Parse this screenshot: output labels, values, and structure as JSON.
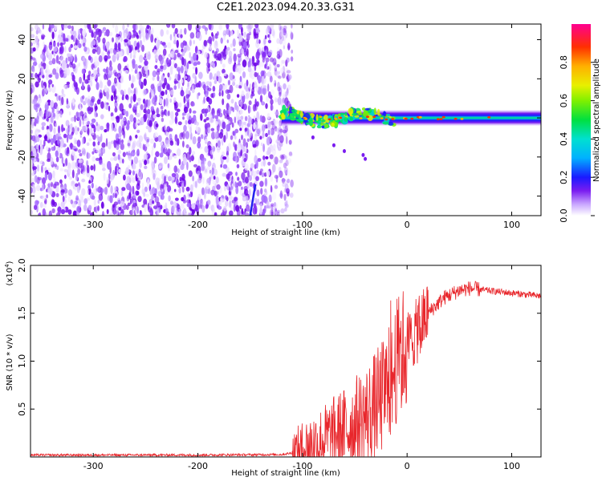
{
  "title": "C2E1.2023.094.20.33.G31",
  "colors": {
    "snr_line": "#e8262b",
    "noise_purple": "#7a1cf0",
    "frame": "#000000"
  },
  "chart_data": [
    {
      "type": "heatmap",
      "name": "spectrogram",
      "xlabel": "Height of straight line (km)",
      "ylabel": "Frequency (Hz)",
      "xlim": [
        -360,
        128
      ],
      "ylim": [
        -50,
        48
      ],
      "xticks": [
        -300,
        -200,
        -100,
        0,
        100
      ],
      "yticks": [
        -40,
        -20,
        0,
        20,
        40
      ],
      "colorbar": {
        "label": "Normalized spectral amplitude",
        "range": [
          0,
          1
        ],
        "ticks": [
          0.0,
          0.2,
          0.4,
          0.6,
          0.8
        ],
        "tick_labels": [
          "0.0",
          "0.2",
          "0.4",
          "0.6",
          "0.8"
        ]
      },
      "noise_region_x": [
        -360,
        -110
      ],
      "signal_band_center_hz": 0,
      "signal_band_start_km": -120
    },
    {
      "type": "line",
      "name": "snr",
      "xlabel": "Height of straight line (km)",
      "ylabel": "SNR (10 * v/v)",
      "y_multiplier_label": "(x10",
      "y_multiplier_exp": "4",
      "y_multiplier_close": ")",
      "xlim": [
        -360,
        128
      ],
      "ylim": [
        0,
        2.0
      ],
      "xticks": [
        -300,
        -200,
        -100,
        0,
        100
      ],
      "yticks": [
        0.5,
        1.0,
        1.5,
        2.0
      ],
      "ytick_labels": [
        "0.5",
        "1.0",
        "1.5",
        "2.0"
      ],
      "series": [
        {
          "x": [
            -360,
            -300,
            -200,
            -120,
            -105,
            -95,
            -80,
            -60,
            -40,
            -25,
            -15,
            -10,
            0,
            10,
            20,
            35,
            50,
            60,
            75,
            100,
            128
          ],
          "values": [
            0.02,
            0.02,
            0.02,
            0.025,
            0.05,
            0.12,
            0.18,
            0.28,
            0.42,
            0.6,
            0.8,
            1.0,
            1.18,
            1.32,
            1.5,
            1.66,
            1.74,
            1.76,
            1.74,
            1.71,
            1.68
          ]
        }
      ]
    }
  ]
}
